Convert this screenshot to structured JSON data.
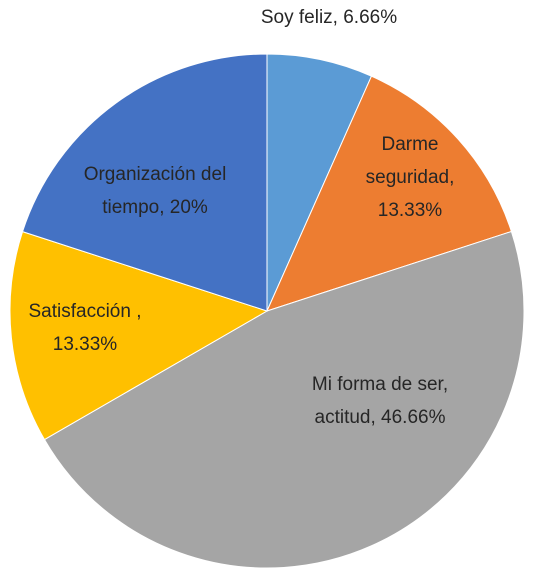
{
  "chart_data": {
    "type": "pie",
    "values": [
      6.66,
      13.33,
      46.66,
      13.33,
      20
    ],
    "value_labels": [
      [
        "Soy feliz, 6.66%"
      ],
      [
        "Darme",
        "seguridad,",
        "13.33%"
      ],
      [
        "Mi forma de ser,",
        "actitud, 46.66%"
      ],
      [
        "Satisfacción ,",
        "13.33%"
      ],
      [
        "Organización del",
        "tiempo, 20%"
      ]
    ],
    "colors": [
      "#5b9bd5",
      "#ed7d31",
      "#a5a5a5",
      "#ffc000",
      "#4472c4"
    ]
  }
}
